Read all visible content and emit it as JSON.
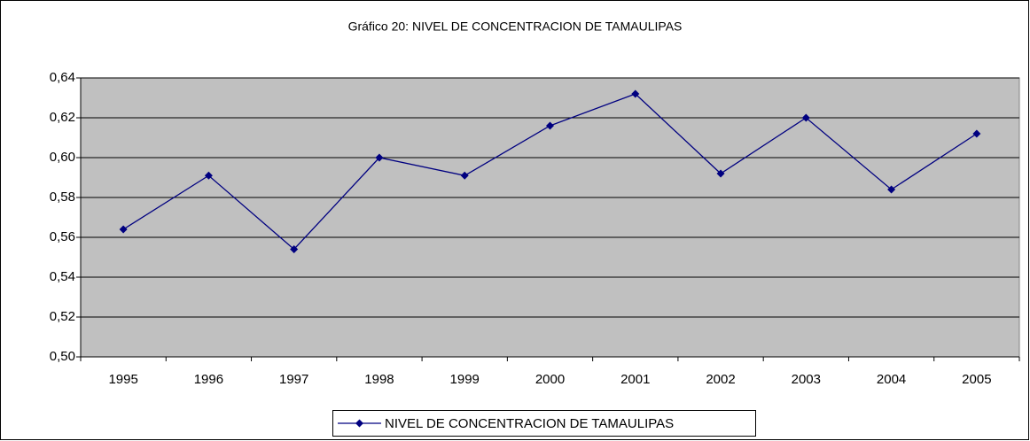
{
  "chart_data": {
    "type": "line",
    "title": "Gráfico 20: NIVEL DE CONCENTRACION DE TAMAULIPAS",
    "categories": [
      "1995",
      "1996",
      "1997",
      "1998",
      "1999",
      "2000",
      "2001",
      "2002",
      "2003",
      "2004",
      "2005"
    ],
    "series": [
      {
        "name": "NIVEL DE CONCENTRACION DE TAMAULIPAS",
        "color": "#000080",
        "values": [
          0.564,
          0.591,
          0.554,
          0.6,
          0.591,
          0.616,
          0.632,
          0.592,
          0.62,
          0.584,
          0.612
        ]
      }
    ],
    "ylim": [
      0.5,
      0.64
    ],
    "yticks": [
      {
        "value": 0.5,
        "label": "0,50"
      },
      {
        "value": 0.52,
        "label": "0,52"
      },
      {
        "value": 0.54,
        "label": "0,54"
      },
      {
        "value": 0.56,
        "label": "0,56"
      },
      {
        "value": 0.58,
        "label": "0,58"
      },
      {
        "value": 0.6,
        "label": "0,60"
      },
      {
        "value": 0.62,
        "label": "0,62"
      },
      {
        "value": 0.64,
        "label": "0,64"
      }
    ],
    "grid": true,
    "plot_background": "#c0c0c0",
    "legend": "bottom"
  }
}
